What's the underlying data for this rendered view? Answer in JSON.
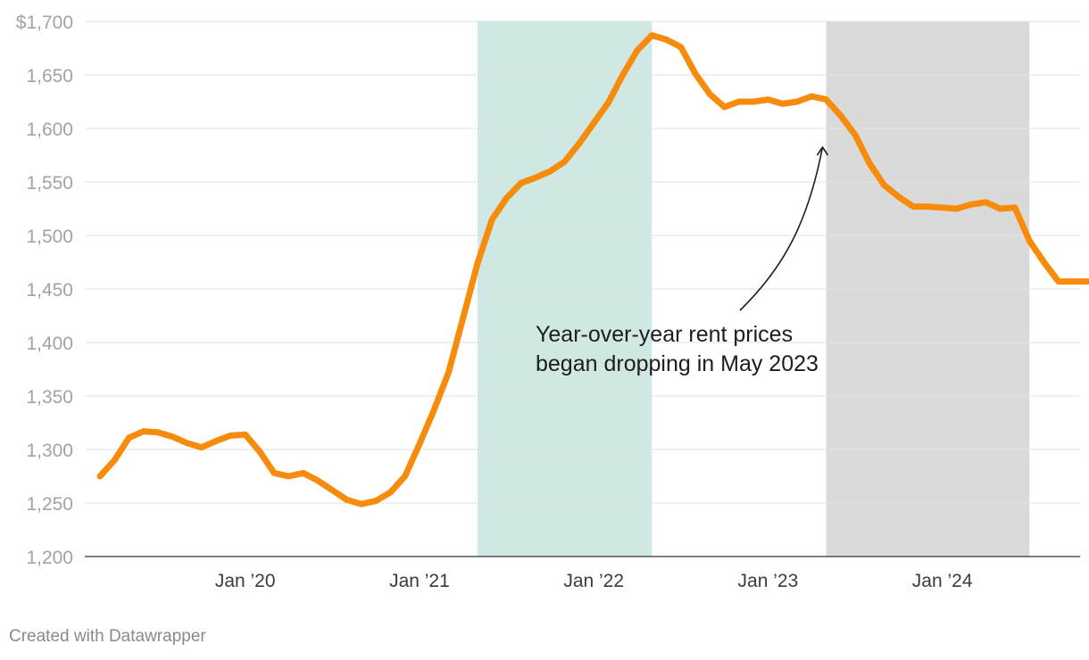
{
  "chart_data": {
    "type": "line",
    "title": "",
    "xlabel": "",
    "ylabel": "",
    "ylim": [
      1200,
      1700
    ],
    "y_ticks": [
      1200,
      1250,
      1300,
      1350,
      1400,
      1450,
      1500,
      1550,
      1600,
      1650,
      1700
    ],
    "y_tick_labels": [
      "1,200",
      "1,250",
      "1,300",
      "1,350",
      "1,400",
      "1,450",
      "1,500",
      "1,550",
      "1,600",
      "1,650",
      "$1,700"
    ],
    "x_range": [
      "2019-03",
      "2024-11"
    ],
    "x_ticks": [
      {
        "date": "2020-01",
        "label": "Jan ’20"
      },
      {
        "date": "2021-01",
        "label": "Jan ’21"
      },
      {
        "date": "2022-01",
        "label": "Jan ’22"
      },
      {
        "date": "2023-01",
        "label": "Jan ’23"
      },
      {
        "date": "2024-01",
        "label": "Jan ’24"
      }
    ],
    "shaded_ranges": [
      {
        "start": "2021-05",
        "end": "2022-05",
        "color": "#cfe8e3"
      },
      {
        "start": "2023-05",
        "end": "2024-07",
        "color": "#dadada"
      }
    ],
    "series": [
      {
        "name": "Rent",
        "color": "#f68b0c",
        "x": [
          "2019-03",
          "2019-04",
          "2019-05",
          "2019-06",
          "2019-07",
          "2019-08",
          "2019-09",
          "2019-10",
          "2019-11",
          "2019-12",
          "2020-01",
          "2020-02",
          "2020-03",
          "2020-04",
          "2020-05",
          "2020-06",
          "2020-07",
          "2020-08",
          "2020-09",
          "2020-10",
          "2020-11",
          "2020-12",
          "2021-01",
          "2021-02",
          "2021-03",
          "2021-04",
          "2021-05",
          "2021-06",
          "2021-07",
          "2021-08",
          "2021-09",
          "2021-10",
          "2021-11",
          "2021-12",
          "2022-01",
          "2022-02",
          "2022-03",
          "2022-04",
          "2022-05",
          "2022-06",
          "2022-07",
          "2022-08",
          "2022-09",
          "2022-10",
          "2022-11",
          "2022-12",
          "2023-01",
          "2023-02",
          "2023-03",
          "2023-04",
          "2023-05",
          "2023-06",
          "2023-07",
          "2023-08",
          "2023-09",
          "2023-10",
          "2023-11",
          "2023-12",
          "2024-01",
          "2024-02",
          "2024-03",
          "2024-04",
          "2024-05",
          "2024-06",
          "2024-07",
          "2024-08",
          "2024-09",
          "2024-10",
          "2024-11"
        ],
        "values": [
          1275,
          1290,
          1311,
          1317,
          1316,
          1312,
          1306,
          1302,
          1308,
          1313,
          1314,
          1298,
          1278,
          1275,
          1278,
          1271,
          1262,
          1253,
          1249,
          1252,
          1260,
          1275,
          1305,
          1337,
          1372,
          1423,
          1474,
          1515,
          1535,
          1549,
          1554,
          1560,
          1569,
          1586,
          1605,
          1624,
          1650,
          1673,
          1687,
          1683,
          1676,
          1651,
          1632,
          1620,
          1625,
          1625,
          1627,
          1623,
          1625,
          1630,
          1627,
          1612,
          1594,
          1567,
          1547,
          1536,
          1527,
          1527,
          1526,
          1525,
          1529,
          1531,
          1525,
          1526,
          1495,
          1475,
          1457,
          1457,
          1457
        ]
      }
    ],
    "annotations": [
      {
        "lines": [
          "Year-over-year rent prices",
          "began dropping in May 2023"
        ],
        "points_to": "2023-05"
      }
    ]
  },
  "credit": "Created with Datawrapper"
}
